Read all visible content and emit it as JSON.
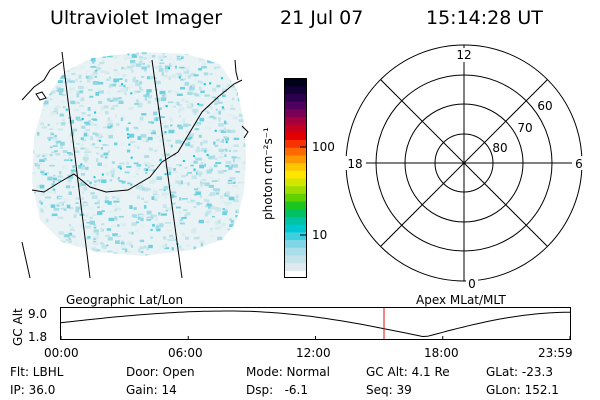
{
  "header": {
    "instrument": "Ultraviolet Imager",
    "date": "21 Jul 07",
    "time": "15:14:28 UT"
  },
  "colorbar": {
    "unit_label": "photon cm⁻²s⁻¹",
    "ticks": [
      "100",
      "10"
    ],
    "colors": [
      "#ffffff",
      "#dde9ee",
      "#c3e2ea",
      "#a8dde9",
      "#7fd6e6",
      "#3cd0e0",
      "#00c8d2",
      "#00c3a3",
      "#00c164",
      "#1ec51e",
      "#5fd200",
      "#9fdc00",
      "#d2e600",
      "#ffe600",
      "#ffc600",
      "#ff9800",
      "#ff6a00",
      "#f83200",
      "#e40000",
      "#c80020",
      "#a40040",
      "#7a0056",
      "#4e005e",
      "#2a004e",
      "#120033",
      "#000018"
    ]
  },
  "polar_plot": {
    "mlt_labels": [
      "12",
      "6",
      "0",
      "18"
    ],
    "lat_labels": [
      "60",
      "70",
      "80"
    ]
  },
  "timeline": {
    "left_title": "Geographic Lat/Lon",
    "right_title": "Apex MLat/MLT",
    "axis_label": "GC Alt",
    "y_ticks": [
      "9.0",
      "1.8"
    ],
    "x_ticks": [
      "00:00",
      "06:00",
      "12:00",
      "18:00",
      "23:59"
    ],
    "current_time_marker_color": "#e01010",
    "orbit_color": "#000000"
  },
  "info": {
    "flt": "Flt: LBHL",
    "ip": "IP: 36.0",
    "door": "Door: Open",
    "gain": "Gain: 14",
    "mode": "Mode: Normal",
    "dsp": "Dsp:   -6.1",
    "gc_alt": "GC Alt: 4.1 Re",
    "seq": "Seq: 39",
    "glat": "GLat: -23.3",
    "glon": "GLon: 152.1"
  }
}
